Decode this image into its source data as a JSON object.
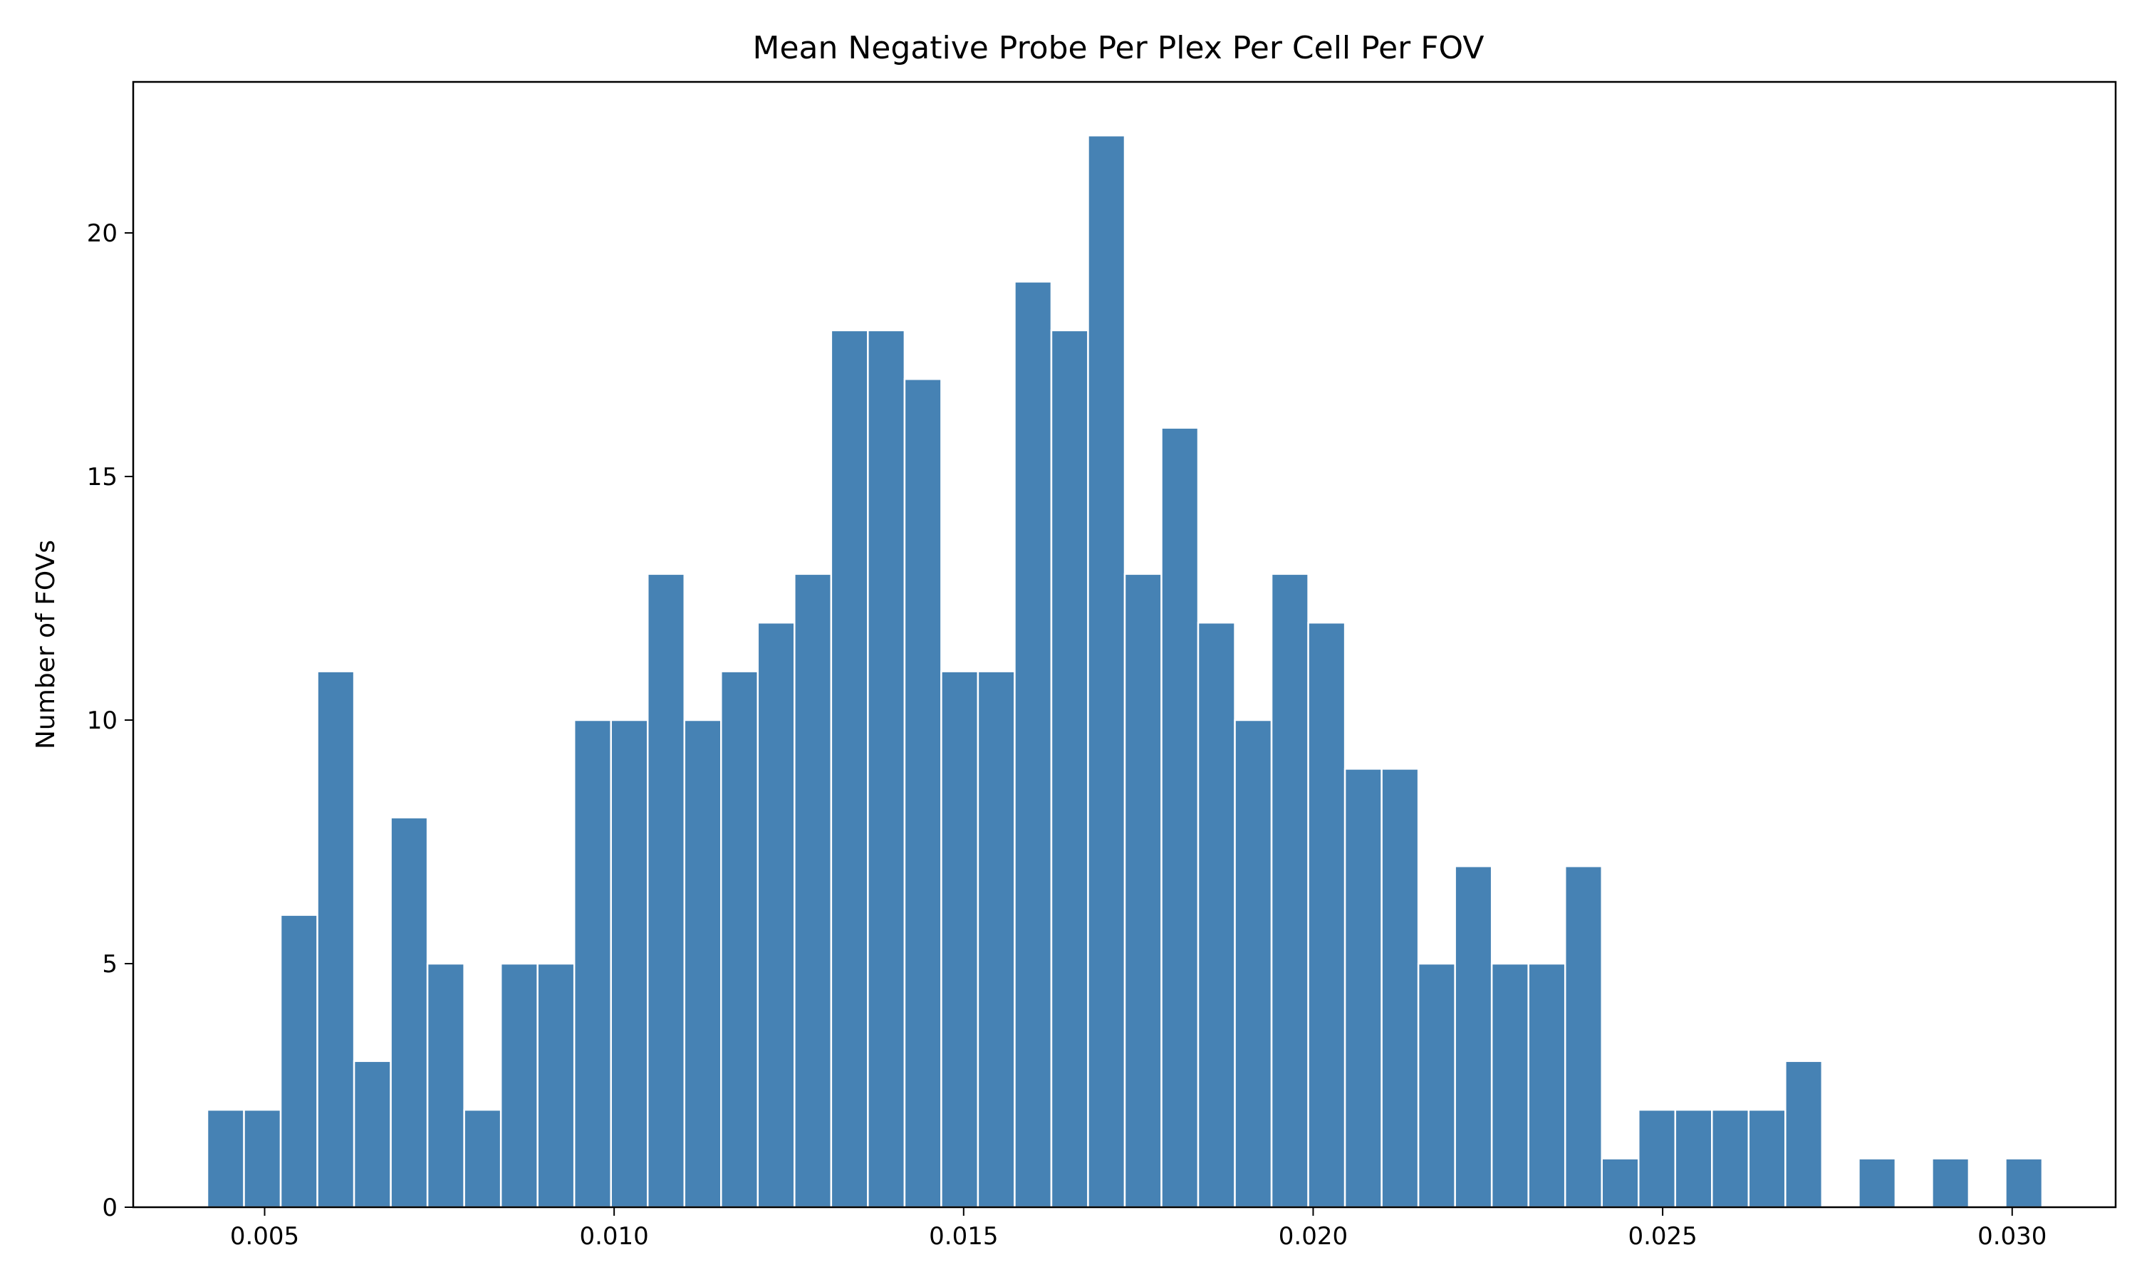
{
  "chart_data": {
    "type": "bar",
    "title": "Mean Negative Probe Per Plex Per Cell Per FOV",
    "xlabel": "",
    "ylabel": "Number of FOVs",
    "bar_color": "#4682b4",
    "bar_edge_color": "#ffffff",
    "xlim": [
      0.00312,
      0.03148
    ],
    "ylim": [
      0,
      23.1
    ],
    "xticks": [
      0.005,
      0.01,
      0.015,
      0.02,
      0.025,
      0.03
    ],
    "xtick_labels": [
      "0.005",
      "0.010",
      "0.015",
      "0.020",
      "0.025",
      "0.030"
    ],
    "yticks": [
      0,
      5,
      10,
      15,
      20
    ],
    "ytick_labels": [
      "0",
      "5",
      "10",
      "15",
      "20"
    ],
    "bin_start": 0.00418,
    "bin_width": 0.000525,
    "counts": [
      2,
      2,
      6,
      11,
      3,
      8,
      5,
      2,
      5,
      5,
      10,
      10,
      13,
      10,
      11,
      12,
      13,
      18,
      18,
      17,
      11,
      11,
      19,
      18,
      22,
      13,
      16,
      12,
      10,
      13,
      12,
      9,
      9,
      5,
      7,
      5,
      5,
      7,
      1,
      2,
      2,
      2,
      2,
      3,
      0,
      1,
      0,
      1,
      0,
      1
    ],
    "grid": false,
    "legend": "none"
  }
}
